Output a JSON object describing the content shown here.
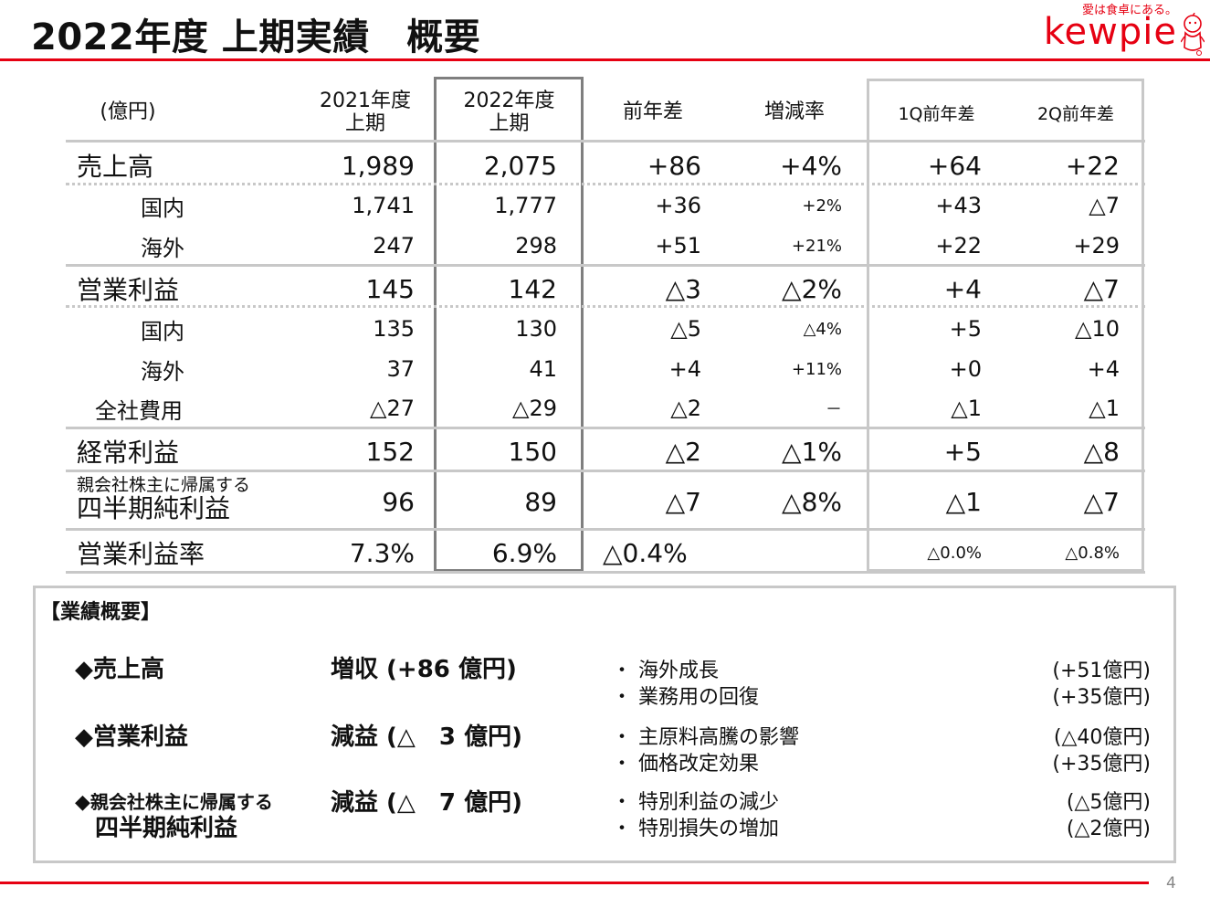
{
  "title": "2022年度 上期実績　概要",
  "logo": {
    "tagline": "愛は食卓にある。",
    "wordmark": "kewpie",
    "brand_color": "#e60012"
  },
  "table": {
    "headers": {
      "unit": "(億円)",
      "fy2021_line1": "2021年度",
      "fy2021_line2": "上期",
      "fy2022_line1": "2022年度",
      "fy2022_line2": "上期",
      "yoy": "前年差",
      "rate": "増減率",
      "q1": "1Q前年差",
      "q2": "2Q前年差"
    },
    "rows": [
      {
        "label": "売上高",
        "y2021": "1,989",
        "y2022": "2,075",
        "diff": "+86",
        "rate": "+4%",
        "q1": "+64",
        "q2": "+22"
      },
      {
        "label": "国内",
        "y2021": "1,741",
        "y2022": "1,777",
        "diff": "+36",
        "rate": "+2%",
        "q1": "+43",
        "q2": "△7"
      },
      {
        "label": "海外",
        "y2021": "247",
        "y2022": "298",
        "diff": "+51",
        "rate": "+21%",
        "q1": "+22",
        "q2": "+29"
      },
      {
        "label": "営業利益",
        "y2021": "145",
        "y2022": "142",
        "diff": "△3",
        "rate": "△2%",
        "q1": "+4",
        "q2": "△7"
      },
      {
        "label": "国内",
        "y2021": "135",
        "y2022": "130",
        "diff": "△5",
        "rate": "△4%",
        "q1": "+5",
        "q2": "△10"
      },
      {
        "label": "海外",
        "y2021": "37",
        "y2022": "41",
        "diff": "+4",
        "rate": "+11%",
        "q1": "+0",
        "q2": "+4"
      },
      {
        "label": "全社費用",
        "y2021": "△27",
        "y2022": "△29",
        "diff": "△2",
        "rate": "－",
        "q1": "△1",
        "q2": "△1"
      },
      {
        "label": "経常利益",
        "y2021": "152",
        "y2022": "150",
        "diff": "△2",
        "rate": "△1%",
        "q1": "+5",
        "q2": "△8"
      },
      {
        "label_small": "親会社株主に帰属する",
        "label": "四半期純利益",
        "y2021": "96",
        "y2022": "89",
        "diff": "△7",
        "rate": "△8%",
        "q1": "△1",
        "q2": "△7"
      },
      {
        "label": "営業利益率",
        "y2021": "7.3%",
        "y2022": "6.9%",
        "diff": "△0.4%",
        "rate": "",
        "q1": "△0.0%",
        "q2": "△0.8%"
      }
    ]
  },
  "summary": {
    "heading": "【業績概要】",
    "items": [
      {
        "marker": "◆",
        "title": "売上高",
        "result": "増収 (+86 億円)",
        "bullets": [
          {
            "text": "・ 海外成長",
            "amount": "(+51億円)"
          },
          {
            "text": "・ 業務用の回復",
            "amount": "(+35億円)"
          }
        ]
      },
      {
        "marker": "◆",
        "title": "営業利益",
        "result": "減益 (△　3 億円)",
        "bullets": [
          {
            "text": "・ 主原料高騰の影響",
            "amount": "(△40億円)"
          },
          {
            "text": "・ 価格改定効果",
            "amount": "(+35億円)"
          }
        ]
      },
      {
        "marker": "◆",
        "title_small": "親会社株主に帰属する",
        "title": "四半期純利益",
        "result": "減益 (△　7 億円)",
        "bullets": [
          {
            "text": "・ 特別利益の減少",
            "amount": "(△5億円)"
          },
          {
            "text": "・ 特別損失の増加",
            "amount": "(△2億円)"
          }
        ]
      }
    ]
  },
  "page_number": "4"
}
